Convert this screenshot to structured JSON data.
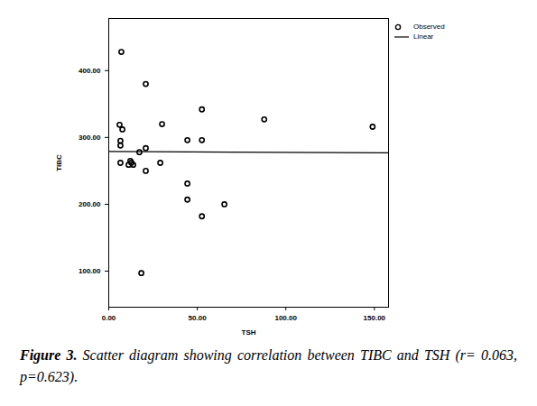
{
  "chart_data": {
    "type": "scatter",
    "xlabel": "TSH",
    "ylabel": "TIBC",
    "caption_label": "Figure 3.",
    "caption": "Scatter diagram showing correlation between TIBC and TSH (r= 0.063, p=0.623).",
    "xlim": [
      0,
      158
    ],
    "ylim": [
      46,
      478
    ],
    "xticks": [
      {
        "value": 0,
        "label": "0.00"
      },
      {
        "value": 50,
        "label": "50.00"
      },
      {
        "value": 100,
        "label": "100.00"
      },
      {
        "value": 150,
        "label": "150.00"
      }
    ],
    "yticks": [
      {
        "value": 100,
        "label": "100.00"
      },
      {
        "value": 200,
        "label": "200.00"
      },
      {
        "value": 300,
        "label": "300.00"
      },
      {
        "value": 400,
        "label": "400.00"
      }
    ],
    "legend": "top-right",
    "grid": false,
    "color": "#000000",
    "series": [
      {
        "name": "Observed",
        "type": "scatter",
        "marker": "circle",
        "x": [
          7.1,
          20.9,
          6.1,
          7.7,
          6.6,
          6.6,
          6.6,
          12.2,
          12.8,
          11.2,
          13.8,
          17.3,
          20.9,
          20.9,
          30.1,
          29.1,
          44.4,
          44.4,
          44.4,
          52.6,
          52.6,
          52.6,
          65.3,
          87.8,
          149,
          18.4
        ],
        "values": [
          428,
          380,
          319,
          312,
          295,
          288,
          262,
          265,
          262,
          259,
          259,
          278,
          284,
          250,
          320,
          262,
          296,
          231,
          207,
          342,
          296,
          182,
          200,
          327,
          316,
          97
        ]
      },
      {
        "name": "Linear",
        "type": "line",
        "line_style": "solid",
        "x": [
          0,
          158
        ],
        "values": [
          279,
          277
        ]
      }
    ]
  }
}
